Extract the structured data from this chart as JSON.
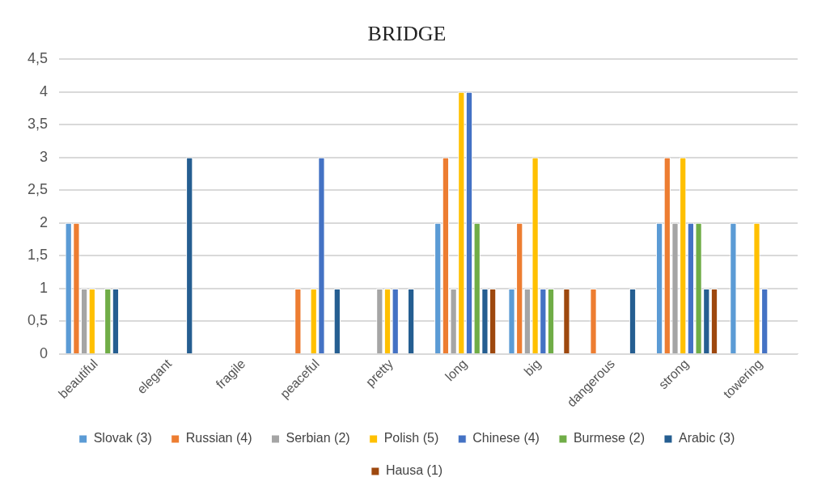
{
  "chart_data": {
    "type": "bar",
    "title": "BRIDGE",
    "categories": [
      "beautiful",
      "elegant",
      "fragile",
      "peaceful",
      "pretty",
      "long",
      "big",
      "dangerous",
      "strong",
      "towering"
    ],
    "series": [
      {
        "name": "Slovak (3)",
        "color": "#5b9bd5",
        "values": [
          2,
          null,
          null,
          null,
          null,
          2,
          1,
          null,
          2,
          2
        ]
      },
      {
        "name": "Russian (4)",
        "color": "#ed7d31",
        "values": [
          2,
          null,
          null,
          1,
          null,
          3,
          2,
          1,
          3,
          null
        ]
      },
      {
        "name": "Serbian (2)",
        "color": "#a5a5a5",
        "values": [
          1,
          null,
          null,
          null,
          1,
          1,
          1,
          null,
          2,
          null
        ]
      },
      {
        "name": "Polish (5)",
        "color": "#ffc000",
        "values": [
          1,
          null,
          null,
          1,
          1,
          4,
          3,
          null,
          3,
          2
        ]
      },
      {
        "name": "Chinese (4)",
        "color": "#4472c4",
        "values": [
          null,
          null,
          null,
          3,
          1,
          4,
          1,
          null,
          2,
          1
        ]
      },
      {
        "name": "Burmese (2)",
        "color": "#70ad47",
        "values": [
          1,
          null,
          null,
          null,
          null,
          2,
          1,
          null,
          2,
          null
        ]
      },
      {
        "name": "Arabic (3)",
        "color": "#255e91",
        "values": [
          1,
          3,
          null,
          1,
          1,
          1,
          null,
          1,
          1,
          null
        ]
      },
      {
        "name": "Hausa (1)",
        "color": "#9e480e",
        "values": [
          null,
          null,
          null,
          null,
          null,
          1,
          1,
          null,
          1,
          null
        ]
      }
    ],
    "ylim": [
      0,
      4.5
    ],
    "yticks": [
      0,
      {
        "value": 0.5,
        "label": "0,5"
      },
      1,
      {
        "value": 1.5,
        "label": "1,5"
      },
      2,
      {
        "value": 2.5,
        "label": "2,5"
      },
      3,
      {
        "value": 3.5,
        "label": "3,5"
      },
      4,
      {
        "value": 4.5,
        "label": "4,5"
      }
    ],
    "grid": "y",
    "legend": "bottom"
  }
}
